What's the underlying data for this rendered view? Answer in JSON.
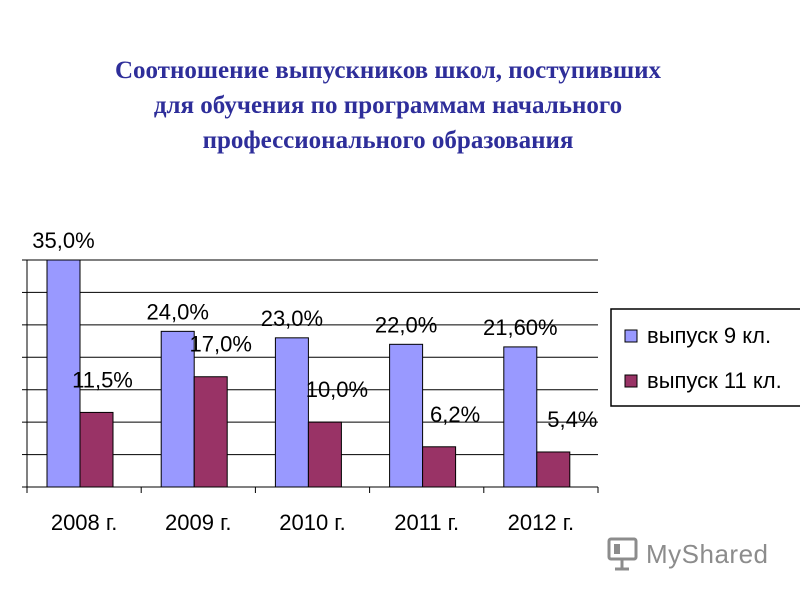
{
  "title_lines": [
    "Соотношение выпускников школ, поступивших",
    "для обучения по программам начального",
    "профессионального образования"
  ],
  "watermark": {
    "text": "MyShared",
    "icon": "presentation-screen-icon"
  },
  "chart_data": {
    "type": "bar",
    "title": "Соотношение выпускников школ, поступивших для обучения по программам начального профессионального образования",
    "categories": [
      "2008 г.",
      "2009 г.",
      "2010 г.",
      "2011 г.",
      "2012 г."
    ],
    "series": [
      {
        "name": "выпуск 9 кл.",
        "values": [
          35.0,
          24.0,
          23.0,
          22.0,
          21.6
        ],
        "labels": [
          "35,0%",
          "24,0%",
          "23,0%",
          "22,0%",
          "21,60%"
        ],
        "color": "#9999ff"
      },
      {
        "name": "выпуск 11 кл.",
        "values": [
          11.5,
          17.0,
          10.0,
          6.2,
          5.4
        ],
        "labels": [
          "11,5%",
          "17,0%",
          "10,0%",
          "6,2%",
          "5,4%"
        ],
        "color": "#993366"
      }
    ],
    "ylim": [
      0,
      35
    ],
    "y_tick_count": 8,
    "grid": true,
    "y_tick_labels_visible": false,
    "legend_position": "right"
  }
}
